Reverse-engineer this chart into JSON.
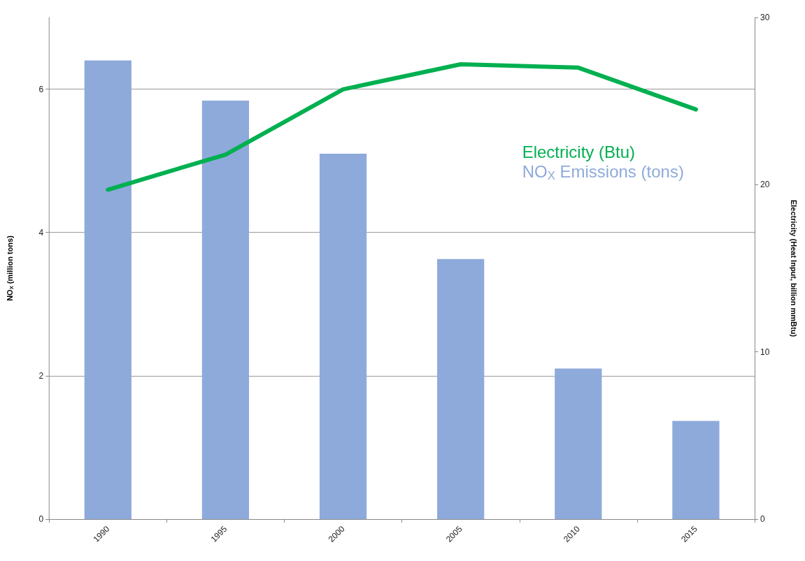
{
  "chart_data": {
    "type": "bar",
    "categories": [
      "1990",
      "1995",
      "2000",
      "2005",
      "2010",
      "2015"
    ],
    "ylabel": "NO$_{X}$ (million tons)",
    "y2label": "Electricity (Heat Input, billion mmBtu)",
    "ylim": [
      0,
      7
    ],
    "yticks": [
      0,
      2,
      4,
      6
    ],
    "y2lim": [
      0,
      30
    ],
    "y2ticks": [
      0,
      10,
      20,
      30
    ],
    "grid": "y",
    "legend": "right",
    "series": [
      {
        "name": "Electricity (Btu)",
        "type": "line",
        "axis": "y2",
        "color": "#00b050",
        "marker": "none",
        "values": [
          19.7,
          21.8,
          25.7,
          27.2,
          27.0,
          24.5
        ]
      },
      {
        "name": "NO$_{X}$ Emissions (tons)",
        "color": "#8eaadb",
        "values": [
          6.4,
          5.84,
          5.1,
          3.63,
          2.1,
          1.37
        ]
      }
    ]
  }
}
